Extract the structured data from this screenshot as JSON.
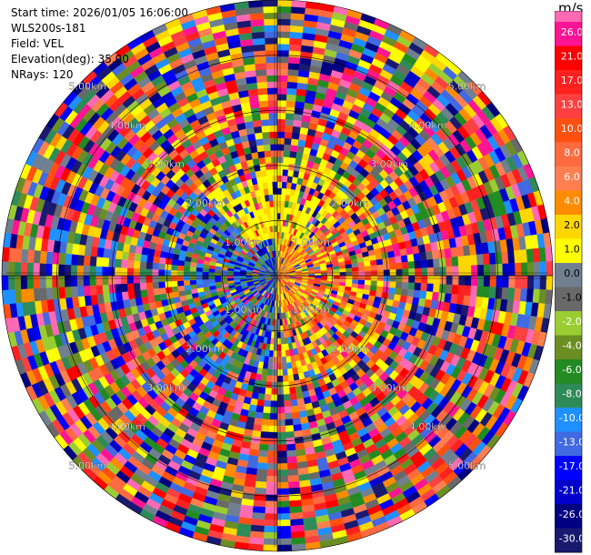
{
  "header": {
    "start_time": "Start time: 2026/01/05 16:06:00",
    "station": "WLS200s-181",
    "field": "Field: VEL",
    "elevation": "Elevation(deg): 35.00",
    "nrays": "NRays: 120"
  },
  "colorbar": {
    "unit": "m/s",
    "labels": [
      "26.0",
      "21.0",
      "17.0",
      "13.0",
      "10.0",
      "8.0",
      "6.0",
      "4.0",
      "2.0",
      "1.0",
      "0.0",
      "-1.0",
      "-2.0",
      "-4.0",
      "-6.0",
      "-8.0",
      "-10.0",
      "-13.0",
      "-17.0",
      "-21.0",
      "-26.0",
      "-30.0"
    ],
    "colors": [
      "#ff1493",
      "#ff0000",
      "#ff2020",
      "#ff4040",
      "#ff5010",
      "#ff6a40",
      "#ff7f50",
      "#ff8c00",
      "#ffd700",
      "#ffff00",
      "#708090",
      "#696969",
      "#9acd32",
      "#6b8e23",
      "#228b22",
      "#2e8b57",
      "#1e90ff",
      "#4169e1",
      "#0000ff",
      "#0000cd",
      "#000080",
      "#191970"
    ],
    "top_color": "#ff69b4"
  },
  "chart_data": {
    "type": "heatmap",
    "projection": "polar PPI",
    "field": "VEL",
    "nrays": 120,
    "max_range_km": 5.0,
    "range_ring_labels": [
      "1.00km",
      "2.00km",
      "3.00km",
      "4.00km",
      "5.00km"
    ],
    "near_field": {
      "east_sector": "positive velocities (1 to 13 m/s, orange/red)",
      "west_sector": "negative velocities (-4 to -13 m/s, blue)",
      "north_sector": "near 2 to 4 m/s (yellow)"
    },
    "far_field": "noisy mixture of all velocity bins"
  }
}
